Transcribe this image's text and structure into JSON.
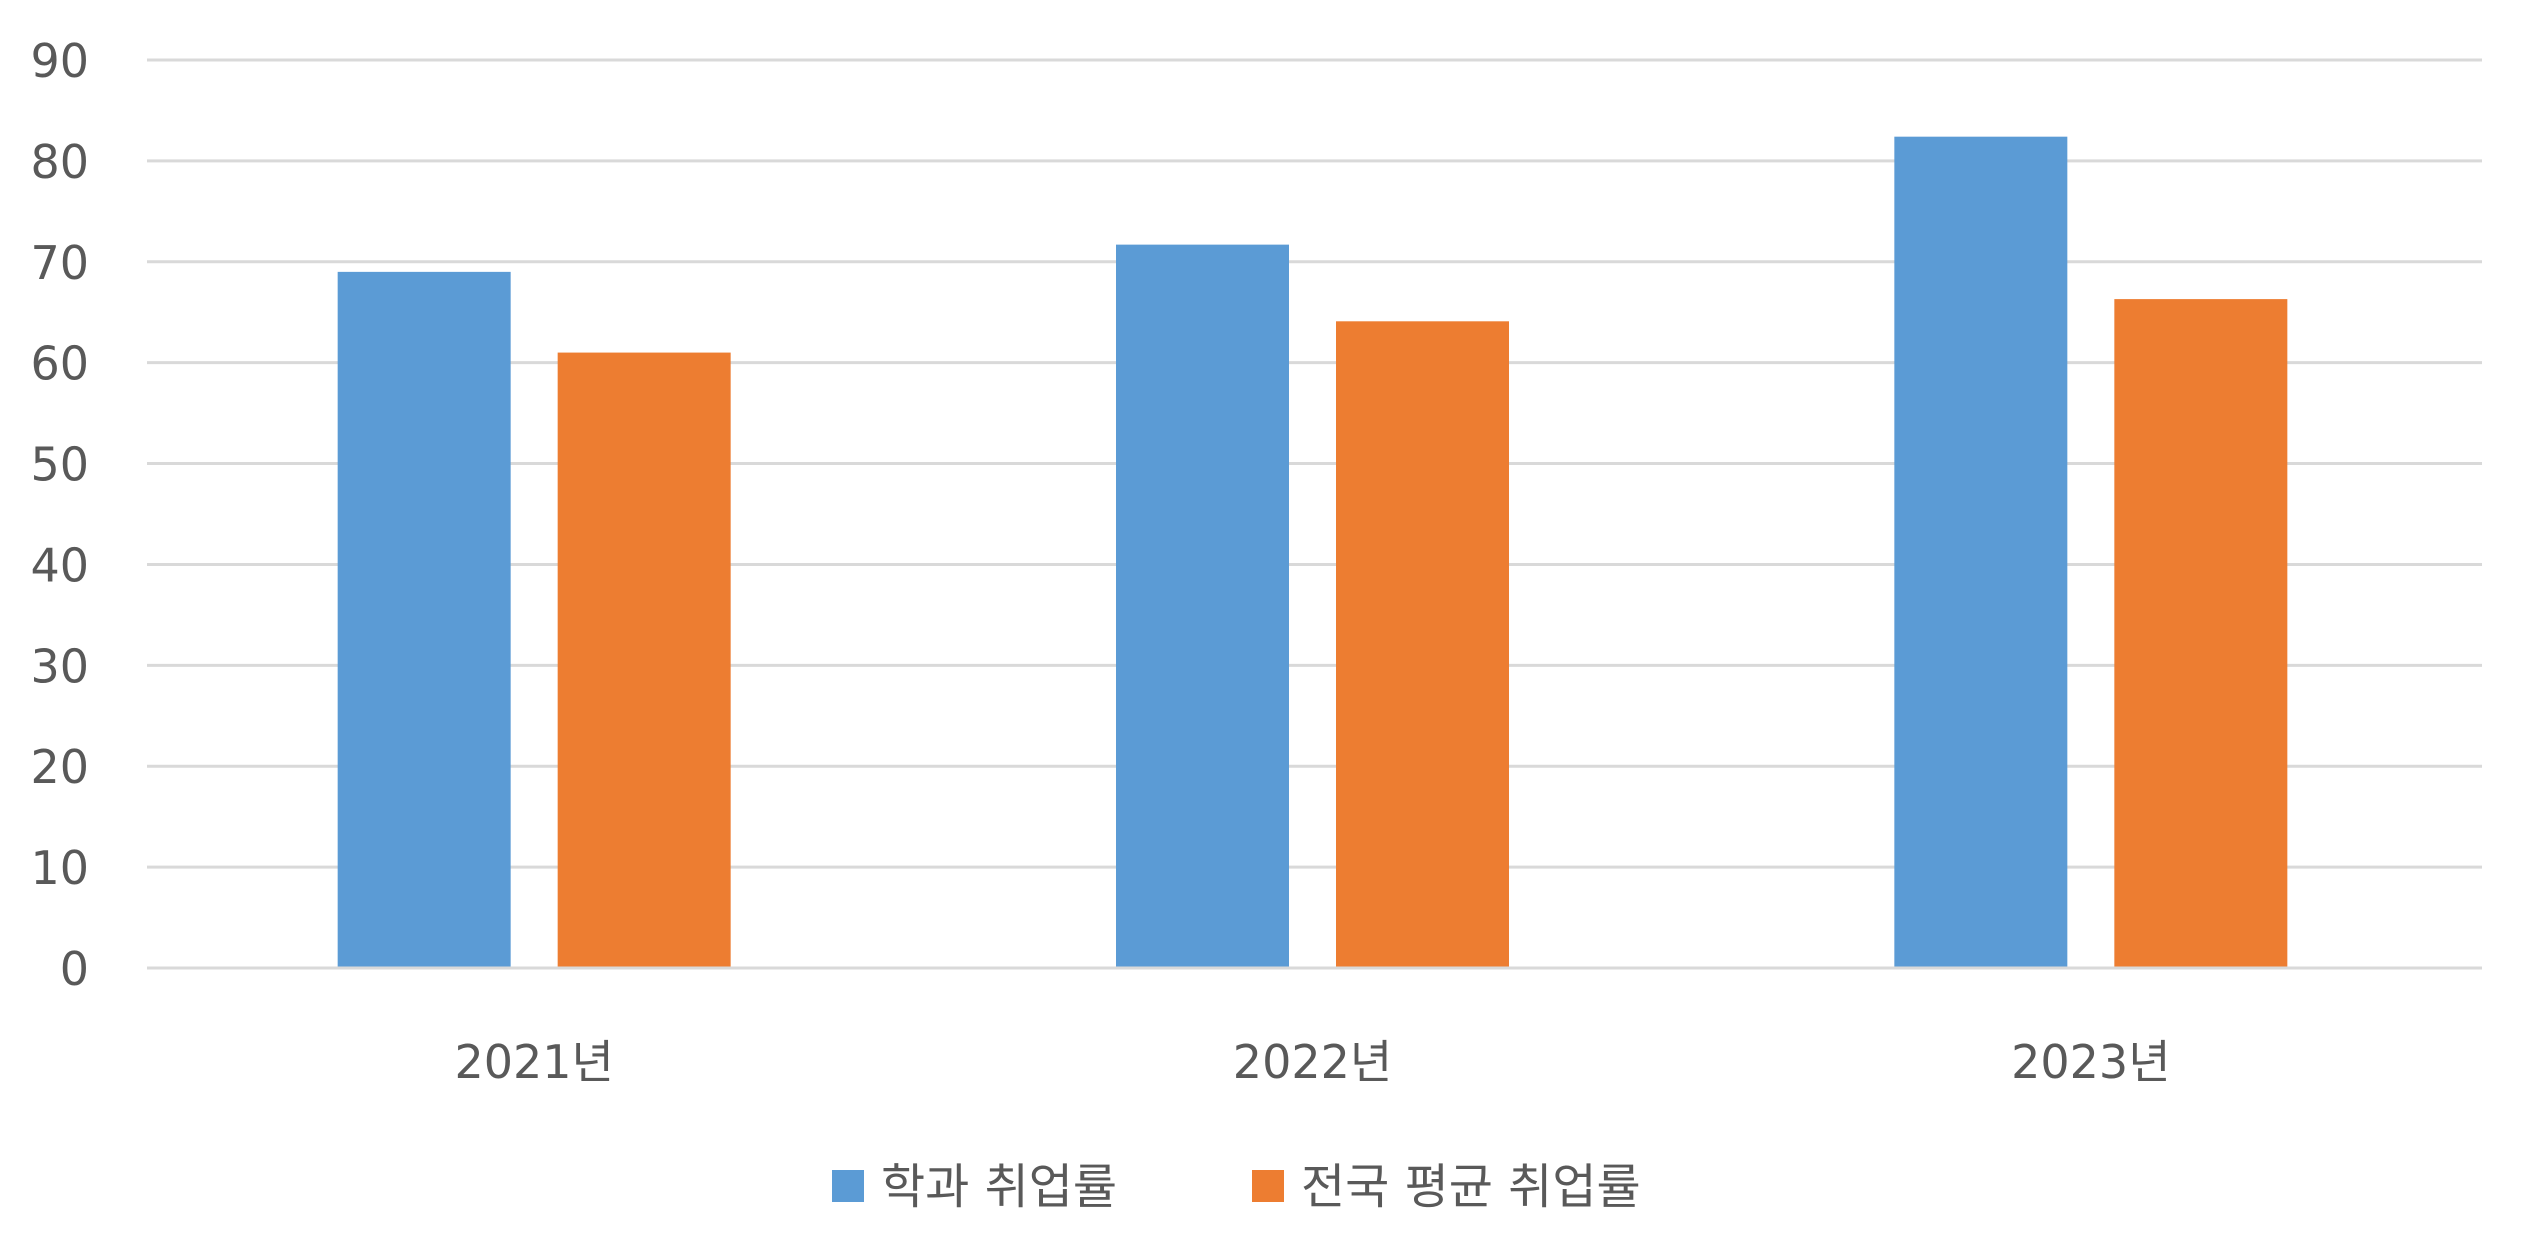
{
  "chart_data": {
    "type": "bar",
    "title": "",
    "xlabel": "",
    "ylabel": "",
    "categories": [
      "2021년",
      "2022년",
      "2023년"
    ],
    "series": [
      {
        "name": "학과 취업률",
        "color": "#5B9BD5",
        "values": [
          69.0,
          71.7,
          82.4
        ]
      },
      {
        "name": "전국 평균 취업률",
        "color": "#ED7D31",
        "values": [
          61.0,
          64.1,
          66.3
        ]
      }
    ],
    "ylim": [
      0,
      90
    ],
    "yticks": [
      0,
      10,
      20,
      30,
      40,
      50,
      60,
      70,
      80,
      90
    ],
    "grid": true,
    "gridline_color": "#D9D9D9",
    "legend_position": "bottom"
  }
}
